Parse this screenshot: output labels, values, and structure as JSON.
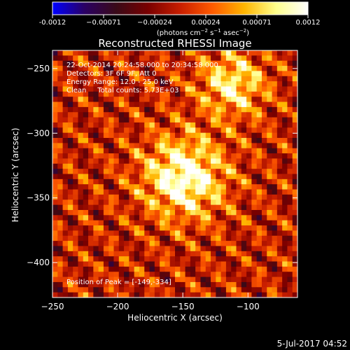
{
  "colorbar": {
    "ticks": [
      "-0.0012",
      "−0.00071",
      "−0.00024",
      "0.00024",
      "0.00071",
      "0.0012"
    ],
    "unit_prefix": "(photons cm",
    "unit_exp1": "−2",
    "unit_mid": " s",
    "unit_exp2": "−1",
    "unit_mid2": " asec",
    "unit_exp3": "−2",
    "unit_suffix": ")"
  },
  "chart_data": {
    "type": "heatmap",
    "title": "Reconstructed RHESSI Image",
    "xlabel": "Heliocentric X (arcsec)",
    "ylabel": "Heliocentric Y (arcsec)",
    "xlim": [
      -250,
      -62
    ],
    "ylim": [
      -427,
      -236
    ],
    "xticks": [
      -250,
      -200,
      -150,
      -100
    ],
    "xticklabels": [
      "−250",
      "−200",
      "−150",
      "−100"
    ],
    "yticks": [
      -250,
      -300,
      -350,
      -400
    ],
    "yticklabels": [
      "−250",
      "−300",
      "−350",
      "−400"
    ],
    "colorbar_range": [
      -0.0012,
      0.0012
    ],
    "colormap": [
      "#0000ff",
      "#2a0063",
      "#3a0a18",
      "#7a0000",
      "#c81e00",
      "#ff5a00",
      "#ffb400",
      "#ffff8c",
      "#ffffff"
    ],
    "sources": [
      {
        "x": -149,
        "y": -334,
        "peak": 0.0012
      },
      {
        "x": -112,
        "y": -262,
        "peak": 0.0009
      }
    ],
    "peak_position": [
      -149,
      -334
    ],
    "annotations": {
      "line1": "22-Oct-2014 20:24:58.000 to 20:34:58.000",
      "line2": "Detectors: 3F 6F 9F, Att 0",
      "line3": "Energy Range: 12.0 - 25.0 keV",
      "line4": "Clean     Total counts: 5.73E+03",
      "peak_label": "Position of Peak = ",
      "peak_value": "[-149,-334]"
    }
  },
  "footer": {
    "timestamp": "5-Jul-2017 04:52"
  }
}
